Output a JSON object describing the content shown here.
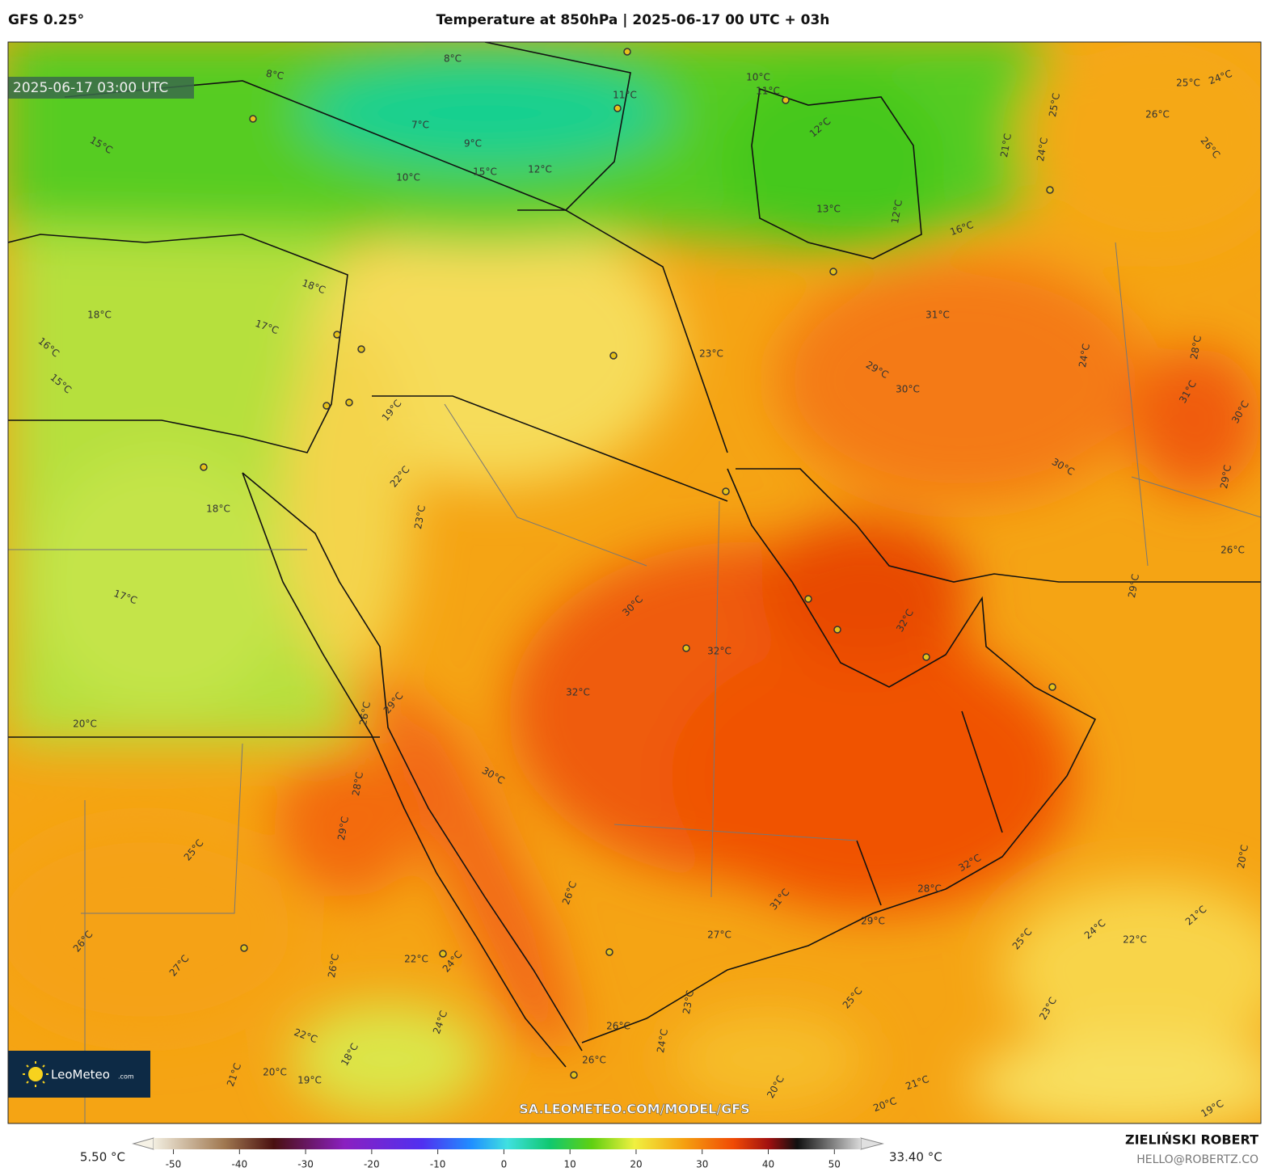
{
  "header": {
    "model": "GFS 0.25°",
    "title": "Temperature at 850hPa | 2025-06-17 00 UTC + 03h"
  },
  "map": {
    "timestamp": "2025-06-17 03:00 UTC",
    "watermark": "SA.LEOMETEO.COM/MODEL/GFS",
    "contour_labels": [
      "8°C",
      "8°C",
      "11°C",
      "10°C",
      "11°C",
      "12°C",
      "15°C",
      "7°C",
      "9°C",
      "10°C",
      "12°C",
      "15°C",
      "13°C",
      "12°C",
      "16°C",
      "25°C",
      "24°C",
      "25°C",
      "26°C",
      "26°C",
      "21°C",
      "24°C",
      "18°C",
      "18°C",
      "17°C",
      "16°C",
      "15°C",
      "31°C",
      "23°C",
      "29°C",
      "30°C",
      "24°C",
      "28°C",
      "31°C",
      "30°C",
      "30°C",
      "29°C",
      "26°C",
      "29°C",
      "19°C",
      "22°C",
      "23°C",
      "18°C",
      "30°C",
      "32°C",
      "32°C",
      "32°C",
      "17°C",
      "20°C",
      "29°C",
      "26°C",
      "28°C",
      "29°C",
      "30°C",
      "25°C",
      "32°C",
      "20°C",
      "26°C",
      "28°C",
      "31°C",
      "27°C",
      "29°C",
      "25°C",
      "24°C",
      "21°C",
      "22°C",
      "26°C",
      "27°C",
      "26°C",
      "22°C",
      "24°C",
      "23°C",
      "25°C",
      "23°C",
      "24°C",
      "24°C",
      "26°C",
      "22°C",
      "18°C",
      "26°C",
      "21°C",
      "20°C",
      "19°C",
      "20°C",
      "21°C",
      "20°C",
      "19°C"
    ]
  },
  "logo": {
    "name": "LeoMeteo",
    "suffix": ".com"
  },
  "colorbar": {
    "min_label": "5.50 °C",
    "max_label": "33.40 °C",
    "lim": [
      -53,
      54
    ],
    "ticks": [
      -50,
      -40,
      -30,
      -20,
      -10,
      0,
      10,
      20,
      30,
      40,
      50
    ]
  },
  "credits": {
    "author": "ZIELIŃSKI ROBERT",
    "email": "HELLO@ROBERTZ.CO"
  }
}
